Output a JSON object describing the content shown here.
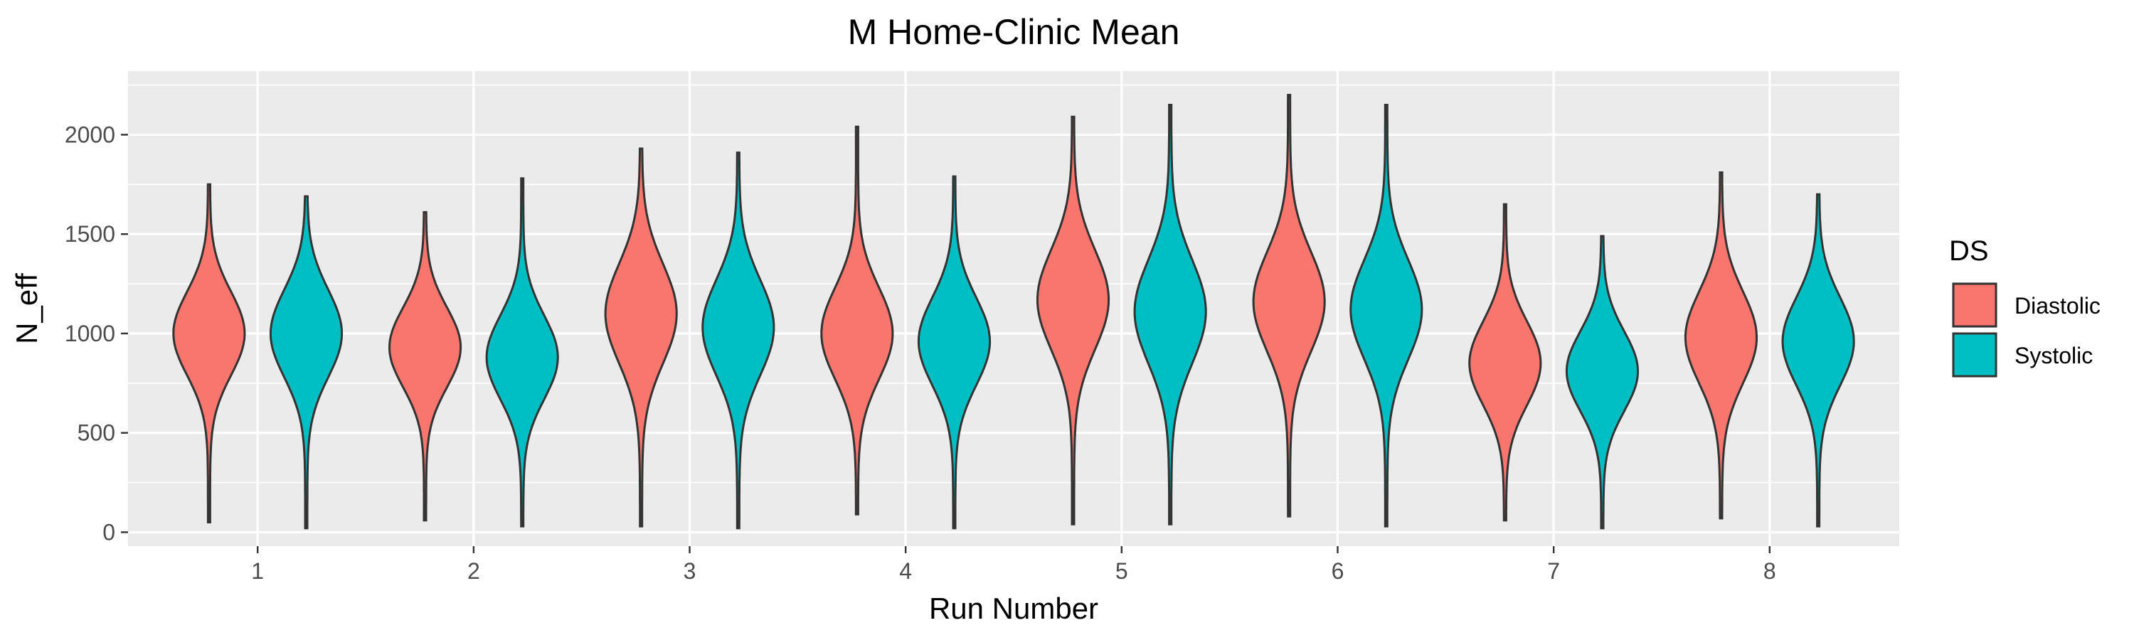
{
  "chart_data": {
    "type": "violin",
    "title": "M Home-Clinic Mean",
    "xlabel": "Run Number",
    "ylabel": "N_eff",
    "categories": [
      "1",
      "2",
      "3",
      "4",
      "5",
      "6",
      "7",
      "8"
    ],
    "ylim": [
      -70,
      2320
    ],
    "yticks": [
      0,
      500,
      1000,
      1500,
      2000
    ],
    "grid": true,
    "legend": {
      "title": "DS",
      "position": "right"
    },
    "colors": {
      "Diastolic": "#F8766D",
      "Systolic": "#00BFC4",
      "panel": "#EBEBEB",
      "grid": "#FFFFFF"
    },
    "series": [
      {
        "name": "Diastolic",
        "violins": [
          {
            "min": 50,
            "max": 1750,
            "center": 1000,
            "widest": 1000,
            "spread": 210
          },
          {
            "min": 60,
            "max": 1610,
            "center": 930,
            "widest": 980,
            "spread": 200
          },
          {
            "min": 30,
            "max": 1930,
            "center": 1100,
            "widest": 1080,
            "spread": 250
          },
          {
            "min": 90,
            "max": 2040,
            "center": 1000,
            "widest": 1000,
            "spread": 230
          },
          {
            "min": 40,
            "max": 2090,
            "center": 1170,
            "widest": 1120,
            "spread": 250
          },
          {
            "min": 80,
            "max": 2200,
            "center": 1160,
            "widest": 1140,
            "spread": 250
          },
          {
            "min": 60,
            "max": 1650,
            "center": 850,
            "widest": 870,
            "spread": 210
          },
          {
            "min": 70,
            "max": 1810,
            "center": 980,
            "widest": 1000,
            "spread": 230
          }
        ]
      },
      {
        "name": "Systolic",
        "violins": [
          {
            "min": 20,
            "max": 1690,
            "center": 1000,
            "widest": 1000,
            "spread": 220
          },
          {
            "min": 30,
            "max": 1780,
            "center": 880,
            "widest": 900,
            "spread": 210
          },
          {
            "min": 20,
            "max": 1910,
            "center": 1030,
            "widest": 1030,
            "spread": 240
          },
          {
            "min": 20,
            "max": 1790,
            "center": 960,
            "widest": 950,
            "spread": 220
          },
          {
            "min": 40,
            "max": 2150,
            "center": 1110,
            "widest": 1100,
            "spread": 260
          },
          {
            "min": 30,
            "max": 2150,
            "center": 1120,
            "widest": 1100,
            "spread": 250
          },
          {
            "min": 20,
            "max": 1490,
            "center": 810,
            "widest": 820,
            "spread": 200
          },
          {
            "min": 30,
            "max": 1700,
            "center": 960,
            "widest": 950,
            "spread": 220
          }
        ]
      }
    ]
  }
}
